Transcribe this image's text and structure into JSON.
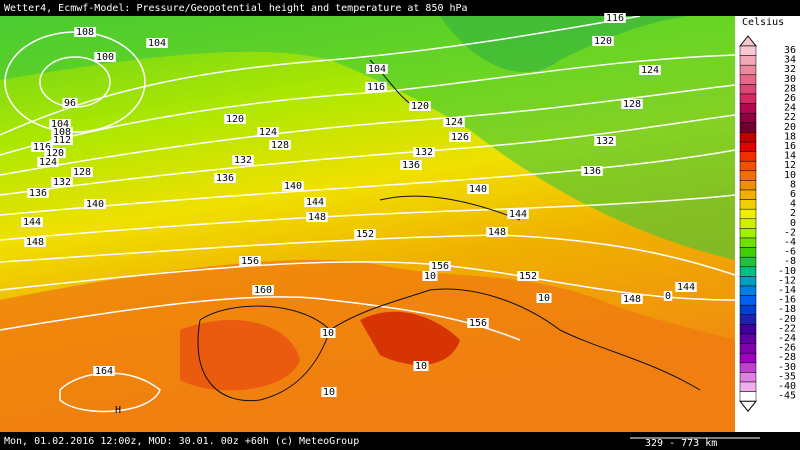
{
  "header": {
    "title": "Wetter4, Ecmwf-Model: Pressure/Geopotential height and temperature at 850 hPa"
  },
  "footer": {
    "info": "Mon, 01.02.2016 12:00z, MOD: 30.01. 00z +60h (c) MeteoGroup",
    "scale": "329 - 773 km"
  },
  "legend": {
    "title": "Celsius",
    "items": [
      {
        "value": 36,
        "color": "#f7c8d0"
      },
      {
        "value": 34,
        "color": "#f2a8b8"
      },
      {
        "value": 32,
        "color": "#ec88a0"
      },
      {
        "value": 30,
        "color": "#e46888"
      },
      {
        "value": 28,
        "color": "#dc4874"
      },
      {
        "value": 26,
        "color": "#d42862"
      },
      {
        "value": 24,
        "color": "#b00850"
      },
      {
        "value": 22,
        "color": "#900040"
      },
      {
        "value": 20,
        "color": "#700030"
      },
      {
        "value": 18,
        "color": "#c00000"
      },
      {
        "value": 16,
        "color": "#e00000"
      },
      {
        "value": 14,
        "color": "#f03000"
      },
      {
        "value": 12,
        "color": "#f05000"
      },
      {
        "value": 10,
        "color": "#f07000"
      },
      {
        "value": 8,
        "color": "#f09000"
      },
      {
        "value": 6,
        "color": "#f0b000"
      },
      {
        "value": 4,
        "color": "#f0d000"
      },
      {
        "value": 2,
        "color": "#f0f000"
      },
      {
        "value": 0,
        "color": "#d0f000"
      },
      {
        "value": -2,
        "color": "#a0f000"
      },
      {
        "value": -4,
        "color": "#70e000"
      },
      {
        "value": -6,
        "color": "#40d000"
      },
      {
        "value": -8,
        "color": "#20c040"
      },
      {
        "value": -10,
        "color": "#00c080"
      },
      {
        "value": -12,
        "color": "#00a0c0"
      },
      {
        "value": -14,
        "color": "#0080e0"
      },
      {
        "value": -16,
        "color": "#0060f0"
      },
      {
        "value": -18,
        "color": "#0040d0"
      },
      {
        "value": -20,
        "color": "#2020b0"
      },
      {
        "value": -22,
        "color": "#4000a0"
      },
      {
        "value": -24,
        "color": "#6000a0"
      },
      {
        "value": -26,
        "color": "#8000b0"
      },
      {
        "value": -28,
        "color": "#a000c0"
      },
      {
        "value": -30,
        "color": "#c040d0"
      },
      {
        "value": -35,
        "color": "#e080e0"
      },
      {
        "value": -40,
        "color": "#f0b0f0"
      },
      {
        "value": -45,
        "color": "#ffffff"
      }
    ]
  },
  "contour_labels": [
    "108",
    "104",
    "100",
    "96",
    "104",
    "108",
    "112",
    "116",
    "120",
    "124",
    "128",
    "132",
    "136",
    "140",
    "144",
    "148",
    "120",
    "124",
    "128",
    "132",
    "136",
    "140",
    "144",
    "148",
    "152",
    "156",
    "160",
    "164",
    "104",
    "116",
    "120",
    "124",
    "126",
    "132",
    "136",
    "140",
    "144",
    "148",
    "152",
    "156",
    "156",
    "148",
    "144",
    "136",
    "132",
    "128",
    "124",
    "120",
    "116",
    "10",
    "10",
    "10",
    "10",
    "10",
    "0",
    "H"
  ]
}
